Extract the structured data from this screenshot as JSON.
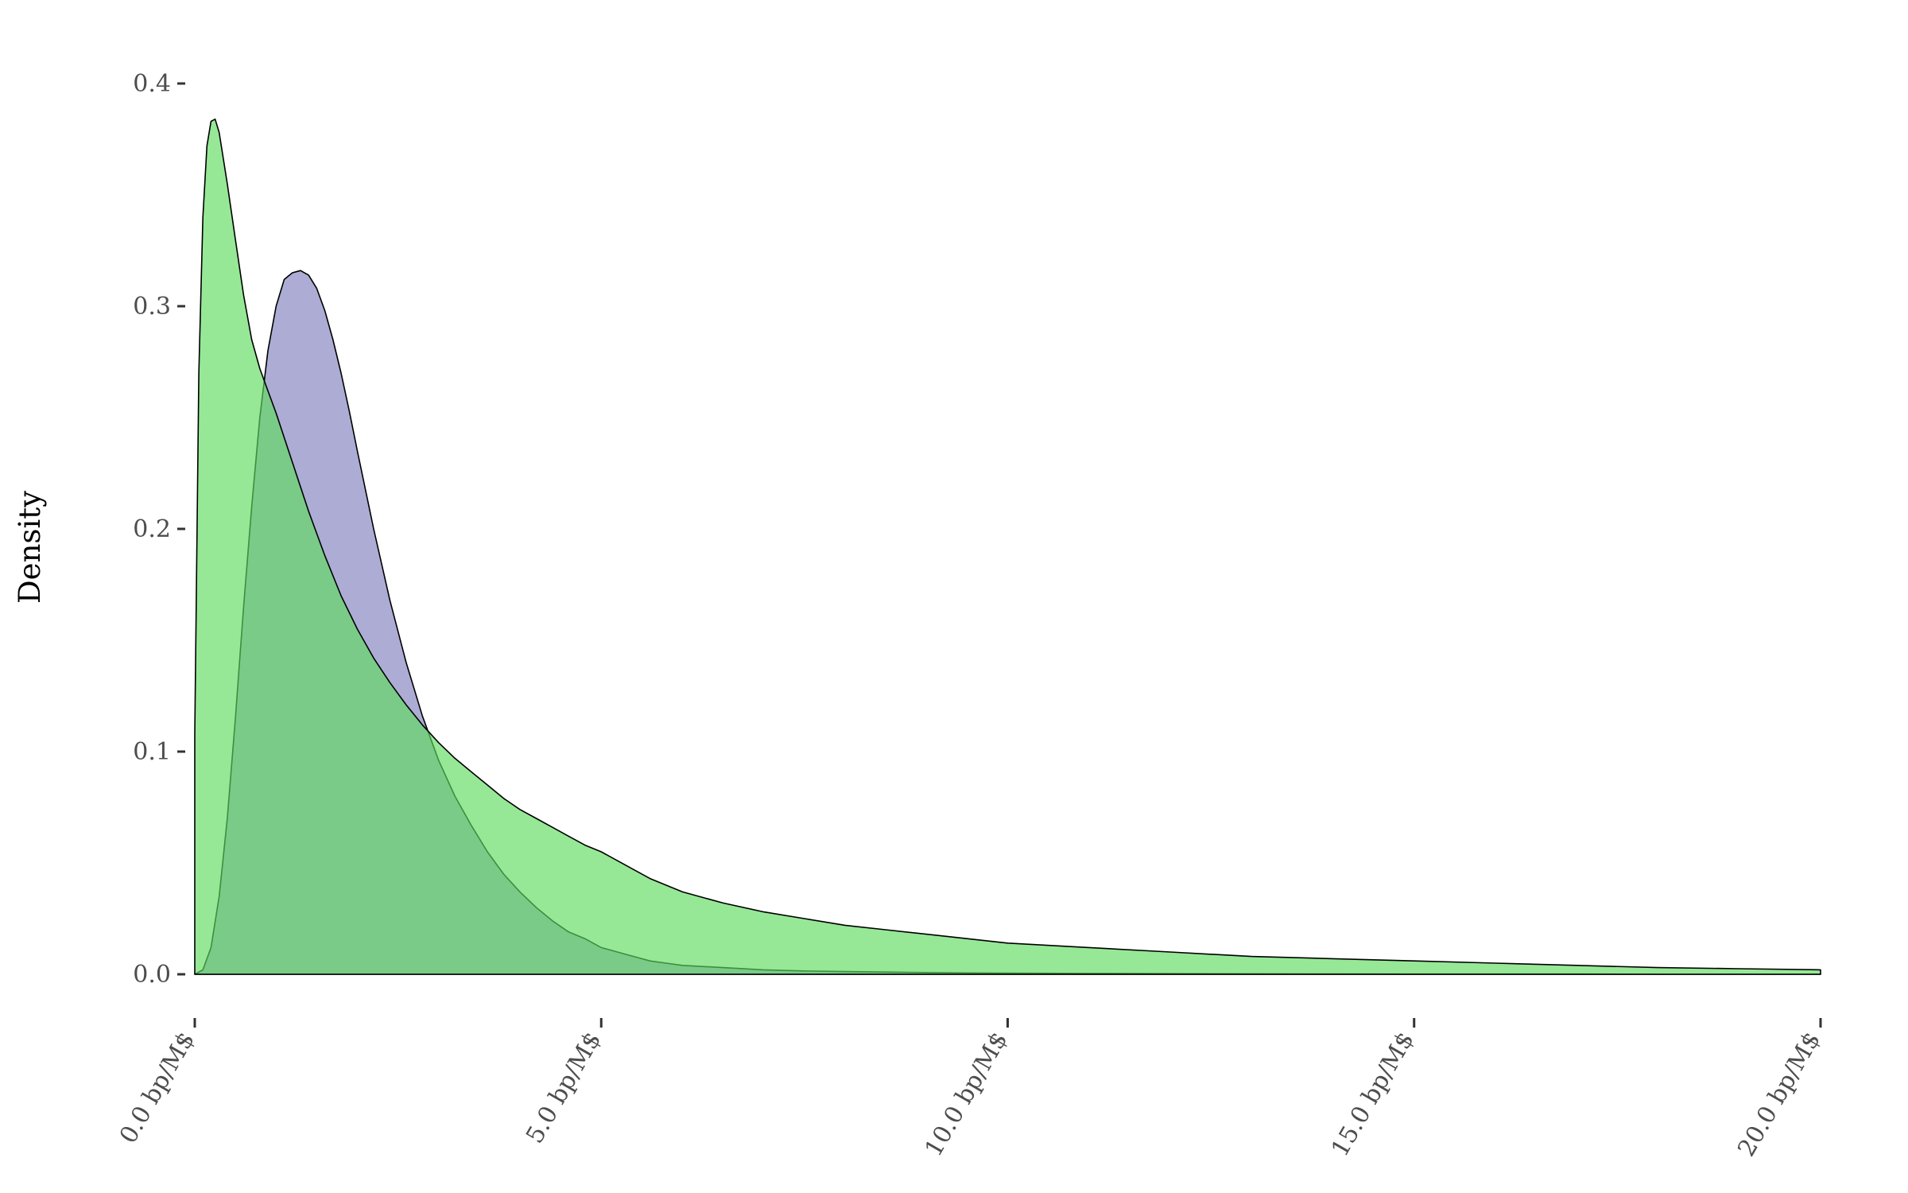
{
  "chart_data": {
    "type": "area",
    "title": "",
    "xlabel": "",
    "ylabel": "Density",
    "xlim": [
      0,
      20
    ],
    "ylim": [
      0,
      0.4
    ],
    "grid": false,
    "legend": "none",
    "x_ticks": [
      0,
      5,
      10,
      15,
      20
    ],
    "x_tick_labels": [
      "0.0 bp/M$",
      "5.0 bp/M$",
      "10.0 bp/M$",
      "15.0 bp/M$",
      "20.0 bp/M$"
    ],
    "y_ticks": [
      0,
      0.1,
      0.2,
      0.3,
      0.4
    ],
    "y_tick_labels": [
      "0.0",
      "0.1",
      "0.2",
      "0.3",
      "0.4"
    ],
    "series": [
      {
        "color": "#7f7fbf",
        "x": [
          0,
          0.1,
          0.2,
          0.3,
          0.4,
          0.5,
          0.6,
          0.7,
          0.8,
          0.9,
          1.0,
          1.1,
          1.2,
          1.3,
          1.4,
          1.5,
          1.6,
          1.7,
          1.8,
          1.9,
          2.0,
          2.2,
          2.4,
          2.6,
          2.8,
          3.0,
          3.2,
          3.4,
          3.6,
          3.8,
          4.0,
          4.2,
          4.4,
          4.6,
          4.8,
          5.0,
          5.2,
          5.4,
          5.6,
          5.8,
          6.0,
          6.5,
          7.0,
          7.5,
          8.0,
          8.5,
          9.0,
          9.5,
          10.0,
          11.0,
          12.0,
          13.0,
          14.0,
          15.0,
          16.0,
          17.0,
          18.0,
          19.0,
          20.0
        ],
        "values": [
          0.0,
          0.002,
          0.012,
          0.035,
          0.07,
          0.115,
          0.165,
          0.21,
          0.25,
          0.28,
          0.3,
          0.312,
          0.315,
          0.316,
          0.314,
          0.308,
          0.298,
          0.285,
          0.27,
          0.253,
          0.235,
          0.2,
          0.168,
          0.14,
          0.116,
          0.096,
          0.08,
          0.067,
          0.055,
          0.045,
          0.037,
          0.03,
          0.024,
          0.019,
          0.016,
          0.012,
          0.01,
          0.008,
          0.006,
          0.005,
          0.004,
          0.003,
          0.002,
          0.0015,
          0.0012,
          0.001,
          0.0008,
          0.0006,
          0.0005,
          0.0004,
          0.0003,
          0.0002,
          0.00015,
          0.0001,
          0.0001,
          0.0001,
          0.0,
          0.0,
          0.0
        ]
      },
      {
        "color": "#5ddc5d",
        "x": [
          0,
          0.05,
          0.1,
          0.15,
          0.2,
          0.25,
          0.3,
          0.4,
          0.5,
          0.6,
          0.7,
          0.8,
          0.9,
          1.0,
          1.2,
          1.4,
          1.6,
          1.8,
          2.0,
          2.2,
          2.4,
          2.6,
          2.8,
          3.0,
          3.2,
          3.4,
          3.6,
          3.8,
          4.0,
          4.2,
          4.4,
          4.6,
          4.8,
          5.0,
          5.2,
          5.4,
          5.6,
          5.8,
          6.0,
          6.5,
          7.0,
          7.5,
          8.0,
          8.5,
          9.0,
          9.5,
          10.0,
          11.0,
          12.0,
          13.0,
          14.0,
          15.0,
          16.0,
          17.0,
          18.0,
          19.0,
          20.0
        ],
        "values": [
          0.108,
          0.27,
          0.34,
          0.372,
          0.383,
          0.384,
          0.378,
          0.355,
          0.33,
          0.305,
          0.285,
          0.272,
          0.262,
          0.252,
          0.23,
          0.208,
          0.188,
          0.17,
          0.155,
          0.142,
          0.131,
          0.121,
          0.112,
          0.104,
          0.097,
          0.091,
          0.085,
          0.079,
          0.074,
          0.07,
          0.066,
          0.062,
          0.058,
          0.055,
          0.051,
          0.047,
          0.043,
          0.04,
          0.037,
          0.032,
          0.028,
          0.025,
          0.022,
          0.02,
          0.018,
          0.016,
          0.014,
          0.012,
          0.01,
          0.008,
          0.007,
          0.006,
          0.005,
          0.004,
          0.003,
          0.0025,
          0.002
        ]
      }
    ]
  }
}
